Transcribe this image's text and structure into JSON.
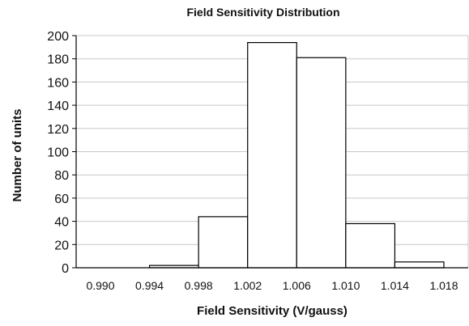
{
  "chart_data": {
    "type": "bar",
    "title": "Field Sensitivity Distribution",
    "xlabel": "Field Sensitivity (V/gauss)",
    "ylabel": "Number of units",
    "x_ticks": [
      "0.990",
      "0.994",
      "0.998",
      "1.002",
      "1.006",
      "1.010",
      "1.014",
      "1.018"
    ],
    "y_ticks": [
      "0",
      "20",
      "40",
      "60",
      "80",
      "100",
      "120",
      "140",
      "160",
      "180",
      "200"
    ],
    "bins": [
      {
        "from": 0.99,
        "to": 0.994,
        "value": 0
      },
      {
        "from": 0.994,
        "to": 0.998,
        "value": 2
      },
      {
        "from": 0.998,
        "to": 1.002,
        "value": 44
      },
      {
        "from": 1.002,
        "to": 1.006,
        "value": 194
      },
      {
        "from": 1.006,
        "to": 1.01,
        "value": 181
      },
      {
        "from": 1.01,
        "to": 1.014,
        "value": 38
      },
      {
        "from": 1.014,
        "to": 1.018,
        "value": 5
      }
    ],
    "xlim": [
      0.99,
      1.018
    ],
    "ylim": [
      0,
      200
    ],
    "grid": true,
    "legend": "none",
    "colors": {
      "bar_fill": "#ffffff",
      "bar_stroke": "#000000",
      "grid": "#c8c8c8",
      "axis": "#000000",
      "frame": "#c8c8c8"
    }
  }
}
